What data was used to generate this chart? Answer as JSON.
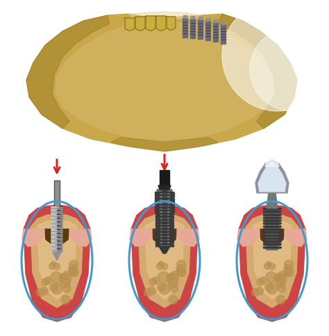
{
  "background_color": "#ffffff",
  "jaw_base": "#c8a84b",
  "jaw_shadow": "#8b6914",
  "jaw_highlight": "#e8d49a",
  "jaw_fade": "#d4b86a",
  "gum_red": "#cc4444",
  "gum_pink": "#e8a898",
  "gum_light": "#f0c0b0",
  "bone_tan": "#d4aa70",
  "bone_light": "#e8c890",
  "bone_dark": "#a07830",
  "bone_spot": "#b89050",
  "socket_dark": "#5a3810",
  "drill_silver": "#c8c8c8",
  "drill_dark": "#484848",
  "drill_mid": "#909090",
  "implant_dark": "#383838",
  "implant_mid": "#686868",
  "implant_light": "#909090",
  "crown_white": "#d8e4f0",
  "crown_highlight": "#f0f4f8",
  "crown_shadow": "#9090a0",
  "abutment_gray": "#707878",
  "arrow_red": "#dd2222",
  "oval_blue": "#4499cc",
  "oval_lw": 2.2,
  "tooth_gold": "#c8b040",
  "tooth_outline": "#806010",
  "implant_screw_gray": "#686878"
}
